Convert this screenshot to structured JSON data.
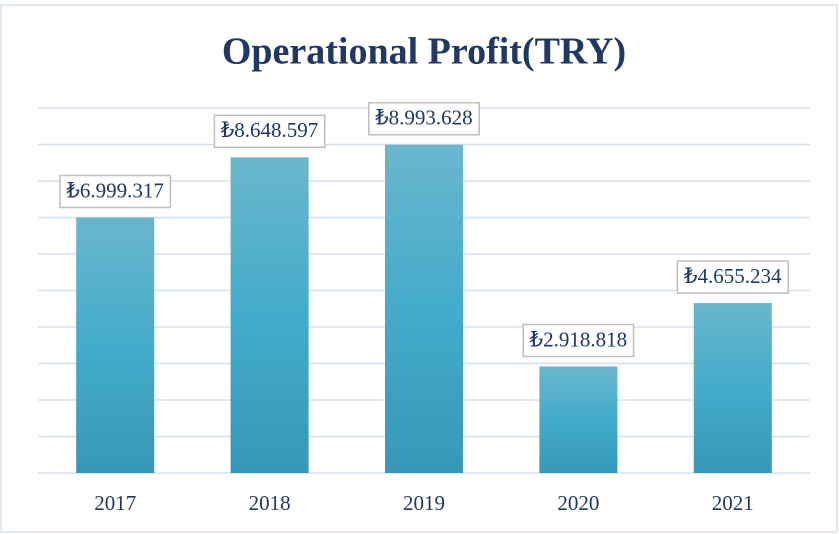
{
  "chart_data": {
    "type": "bar",
    "title": "Operational Profit(TRY)",
    "categories": [
      "2017",
      "2018",
      "2019",
      "2020",
      "2021"
    ],
    "values": [
      6999317,
      8648597,
      8993628,
      2918818,
      4655234
    ],
    "value_labels": [
      "₺6.999.317",
      "₺8.648.597",
      "₺8.993.628",
      "₺2.918.818",
      "₺4.655.234"
    ],
    "color": "#45abc9",
    "ylim": [
      0,
      10000000
    ],
    "yticks": [
      0,
      1000000,
      2000000,
      3000000,
      4000000,
      5000000,
      6000000,
      7000000,
      8000000,
      9000000,
      10000000
    ],
    "grid": true
  }
}
